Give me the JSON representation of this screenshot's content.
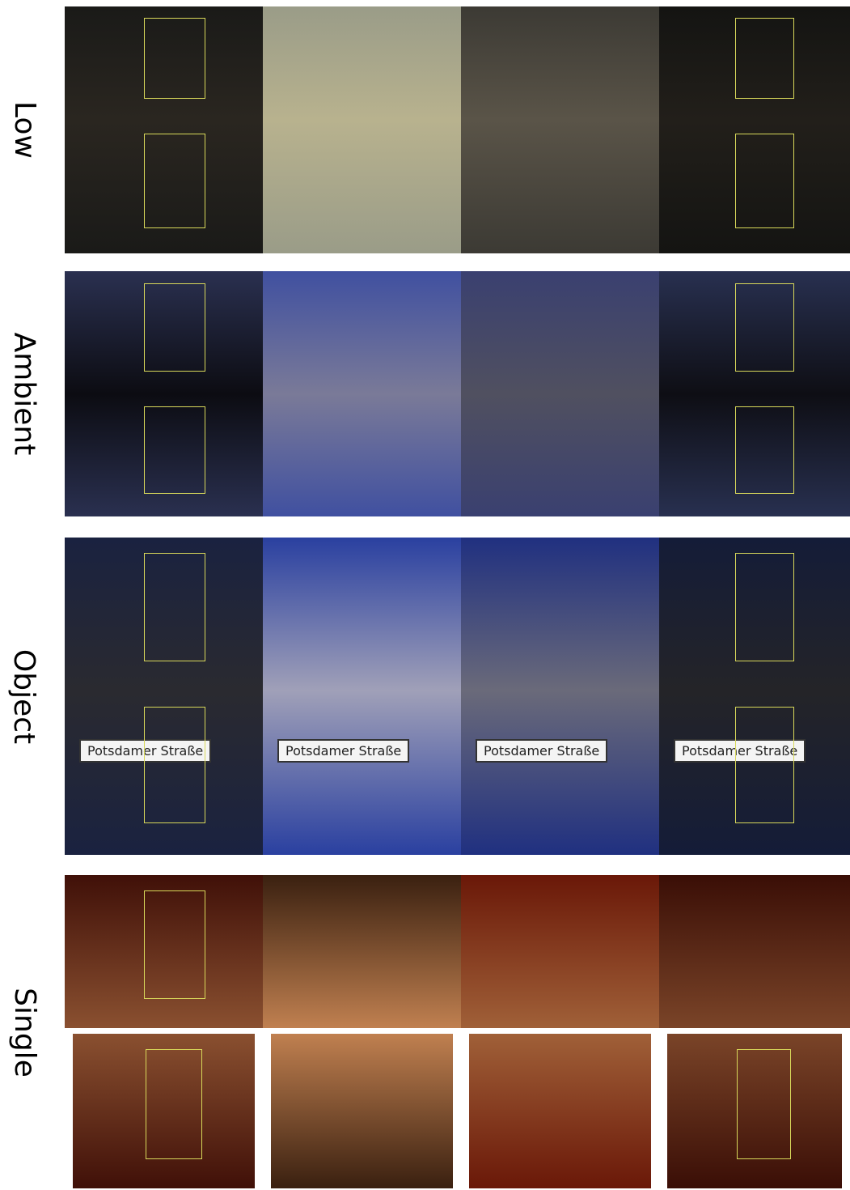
{
  "rows": [
    {
      "label": "Low"
    },
    {
      "label": "Ambient"
    },
    {
      "label": "Object"
    },
    {
      "label": "Single"
    }
  ],
  "sign_text": "Potsdamer Straße"
}
